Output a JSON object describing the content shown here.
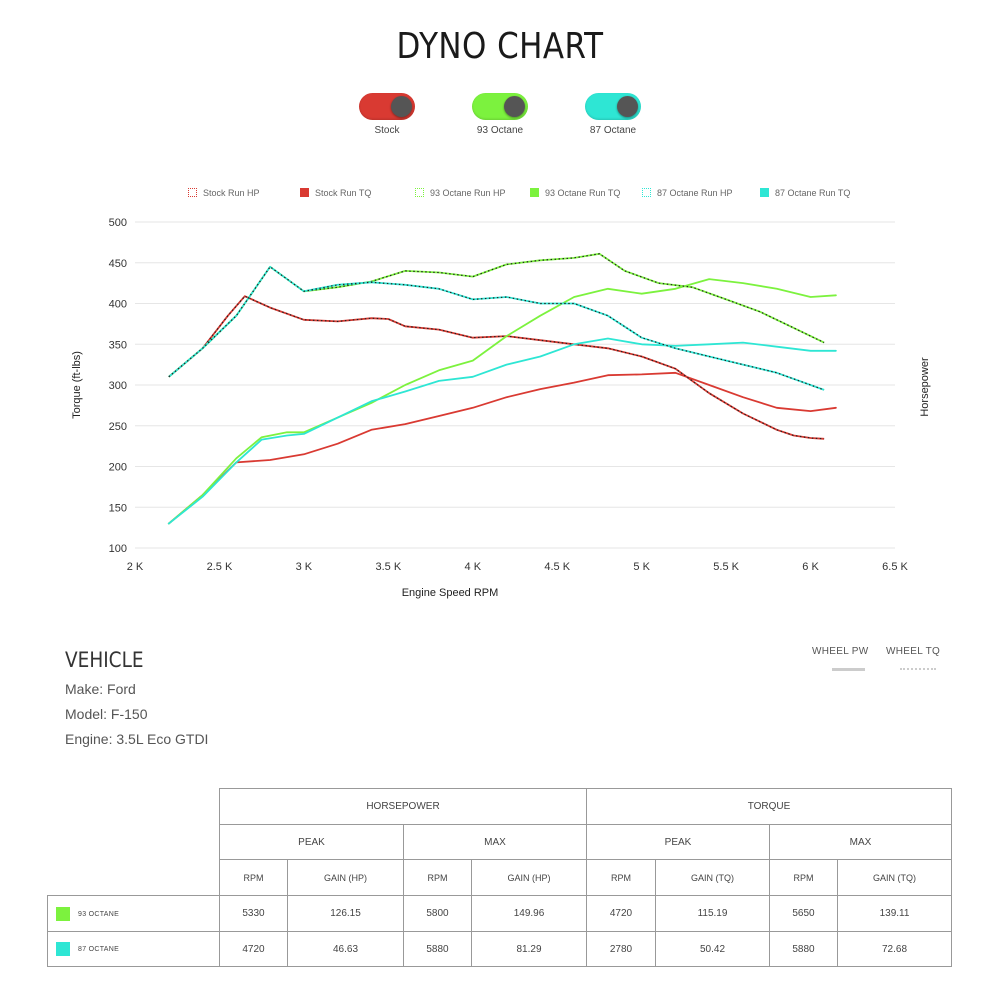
{
  "title": "DYNO CHART",
  "toggles": [
    {
      "label": "Stock",
      "color": "#d93a32"
    },
    {
      "label": "93 Octane",
      "color": "#7cf23e"
    },
    {
      "label": "87 Octane",
      "color": "#2ee6d4"
    }
  ],
  "legend": [
    {
      "label": "Stock Run HP",
      "color": "#d93a32",
      "style": "hollow"
    },
    {
      "label": "Stock Run TQ",
      "color": "#d93a32",
      "style": "filled"
    },
    {
      "label": "93 Octane Run HP",
      "color": "#7cf23e",
      "style": "hollow"
    },
    {
      "label": "93 Octane Run TQ",
      "color": "#7cf23e",
      "style": "filled"
    },
    {
      "label": "87 Octane Run HP",
      "color": "#2ee6d4",
      "style": "hollow"
    },
    {
      "label": "87 Octane Run TQ",
      "color": "#2ee6d4",
      "style": "filled"
    }
  ],
  "chart_data": {
    "type": "line",
    "xlabel": "Engine Speed RPM",
    "ylabel": "Torque (ft-lbs)",
    "y2label": "Horsepower",
    "xlim": [
      2000,
      6500
    ],
    "ylim": [
      100,
      500
    ],
    "xticks": [
      2000,
      2500,
      3000,
      3500,
      4000,
      4500,
      5000,
      5500,
      6000,
      6500
    ],
    "xticklabels": [
      "2 K",
      "2.5 K",
      "3 K",
      "3.5 K",
      "4 K",
      "4.5 K",
      "5 K",
      "5.5 K",
      "6 K",
      "6.5 K"
    ],
    "yticks": [
      100,
      150,
      200,
      250,
      300,
      350,
      400,
      450,
      500
    ],
    "grid": true,
    "series": [
      {
        "name": "Stock Run HP",
        "color": "#d93a32",
        "dashed": false,
        "x": [
          2200,
          2400,
          2600,
          2800,
          3000,
          3200,
          3400,
          3600,
          3800,
          4000,
          4200,
          4400,
          4600,
          4800,
          5000,
          5200,
          5400,
          5600,
          5800,
          6000,
          6150
        ],
        "y": [
          130,
          165,
          205,
          208,
          215,
          228,
          245,
          252,
          262,
          272,
          285,
          295,
          303,
          312,
          313,
          315,
          300,
          285,
          272,
          268,
          272
        ]
      },
      {
        "name": "Stock Run TQ",
        "color": "#d93a32",
        "dashed": true,
        "x": [
          2200,
          2400,
          2550,
          2650,
          2800,
          3000,
          3200,
          3400,
          3500,
          3600,
          3800,
          4000,
          4200,
          4400,
          4600,
          4800,
          5000,
          5200,
          5400,
          5600,
          5800,
          5900,
          6000,
          6080
        ],
        "y": [
          310,
          345,
          385,
          409,
          395,
          380,
          378,
          382,
          381,
          372,
          368,
          358,
          360,
          355,
          350,
          345,
          335,
          320,
          290,
          265,
          245,
          238,
          235,
          234
        ]
      },
      {
        "name": "93 Octane Run HP",
        "color": "#7cf23e",
        "dashed": false,
        "x": [
          2200,
          2400,
          2600,
          2750,
          2900,
          3000,
          3200,
          3400,
          3600,
          3800,
          4000,
          4200,
          4400,
          4600,
          4800,
          5000,
          5200,
          5400,
          5600,
          5800,
          6000,
          6150
        ],
        "y": [
          130,
          165,
          210,
          236,
          242,
          242,
          260,
          278,
          300,
          318,
          330,
          360,
          385,
          408,
          418,
          412,
          418,
          430,
          425,
          418,
          408,
          410
        ]
      },
      {
        "name": "93 Octane Run TQ",
        "color": "#7cf23e",
        "dashed": true,
        "x": [
          2200,
          2400,
          2600,
          2800,
          3000,
          3200,
          3400,
          3600,
          3800,
          4000,
          4200,
          4400,
          4600,
          4750,
          4900,
          5100,
          5300,
          5500,
          5700,
          5900,
          6080
        ],
        "y": [
          310,
          345,
          385,
          445,
          415,
          420,
          427,
          440,
          438,
          433,
          448,
          453,
          456,
          461,
          440,
          425,
          420,
          405,
          390,
          370,
          352
        ]
      },
      {
        "name": "87 Octane Run HP",
        "color": "#2ee6d4",
        "dashed": false,
        "x": [
          2200,
          2400,
          2600,
          2750,
          2900,
          3000,
          3200,
          3400,
          3600,
          3800,
          4000,
          4200,
          4400,
          4600,
          4800,
          5000,
          5200,
          5400,
          5600,
          5800,
          6000,
          6150
        ],
        "y": [
          130,
          163,
          205,
          233,
          238,
          240,
          260,
          280,
          292,
          305,
          310,
          325,
          335,
          350,
          357,
          350,
          348,
          350,
          352,
          347,
          342,
          342
        ]
      },
      {
        "name": "87 Octane Run TQ",
        "color": "#2ee6d4",
        "dashed": true,
        "x": [
          2200,
          2400,
          2600,
          2800,
          3000,
          3200,
          3400,
          3600,
          3800,
          4000,
          4200,
          4400,
          4600,
          4800,
          5000,
          5200,
          5400,
          5600,
          5800,
          6000,
          6080
        ],
        "y": [
          310,
          345,
          385,
          445,
          415,
          423,
          426,
          423,
          418,
          405,
          408,
          400,
          400,
          385,
          358,
          345,
          335,
          325,
          315,
          300,
          294
        ]
      }
    ]
  },
  "vehicle": {
    "heading": "VEHICLE",
    "make": "Make: Ford",
    "model": "Model: F-150",
    "engine": "Engine: 3.5L Eco GTDI"
  },
  "modes": {
    "wheel_pw": "WHEEL PW",
    "wheel_tq": "WHEEL TQ"
  },
  "table": {
    "group_hp": "HORSEPOWER",
    "group_tq": "TORQUE",
    "peak": "PEAK",
    "max": "MAX",
    "rpm": "RPM",
    "gain_hp": "GAIN (HP)",
    "gain_tq": "GAIN (TQ)",
    "rows": [
      {
        "label": "93 OCTANE",
        "color": "#7cf23e",
        "values": [
          "5330",
          "126.15",
          "5800",
          "149.96",
          "4720",
          "115.19",
          "5650",
          "139.11"
        ]
      },
      {
        "label": "87 OCTANE",
        "color": "#2ee6d4",
        "values": [
          "4720",
          "46.63",
          "5880",
          "81.29",
          "2780",
          "50.42",
          "5880",
          "72.68"
        ]
      }
    ]
  }
}
